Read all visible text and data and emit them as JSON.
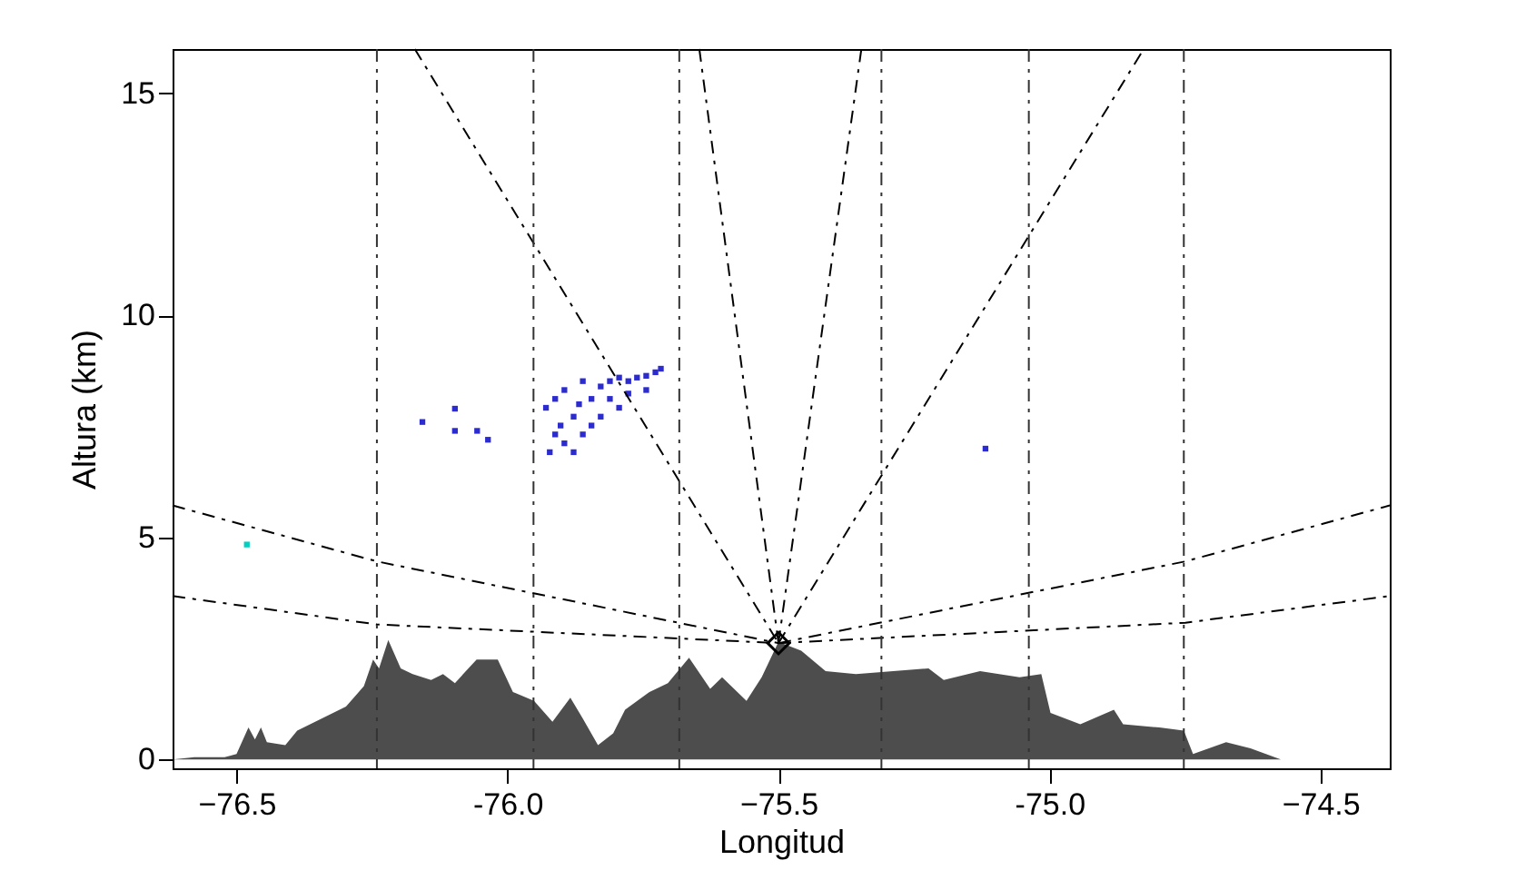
{
  "chart_data": {
    "type": "area",
    "xlabel": "Longitud",
    "ylabel": "Altura (km)",
    "xlim": [
      -76.618,
      -74.372
    ],
    "ylim": [
      -0.2,
      16
    ],
    "xticks": [
      -76.5,
      {
        "value": -76,
        "label": "-76.0"
      },
      -75.5,
      {
        "value": -75,
        "label": "-75.0"
      },
      -74.5
    ],
    "yticks": [
      0,
      5,
      10,
      15
    ],
    "grid": false,
    "series": [
      {
        "color": "#4d4d4d",
        "x": [
          -76.618,
          -76.578,
          -76.522,
          -76.5,
          -76.478,
          -76.466,
          -76.455,
          -76.444,
          -76.41,
          -76.388,
          -76.343,
          -76.298,
          -76.265,
          -76.248,
          -76.237,
          -76.22,
          -76.197,
          -76.175,
          -76.141,
          -76.119,
          -76.097,
          -76.057,
          -76.018,
          -75.99,
          -75.951,
          -75.917,
          -75.884,
          -75.861,
          -75.833,
          -75.805,
          -75.783,
          -75.738,
          -75.704,
          -75.665,
          -75.626,
          -75.604,
          -75.559,
          -75.531,
          -75.5,
          -75.458,
          -75.413,
          -75.357,
          -75.223,
          -75.195,
          -75.128,
          -75.055,
          -75.015,
          -74.998,
          -74.943,
          -74.881,
          -74.864,
          -74.797,
          -74.752,
          -74.735,
          -74.674,
          -74.629,
          -74.573,
          -74.472,
          -74.382
        ],
        "values": [
          0.0,
          0.05,
          0.05,
          0.12,
          0.72,
          0.45,
          0.72,
          0.39,
          0.32,
          0.65,
          0.92,
          1.19,
          1.65,
          2.25,
          2.05,
          2.69,
          2.05,
          1.92,
          1.79,
          1.92,
          1.72,
          2.25,
          2.25,
          1.52,
          1.32,
          0.85,
          1.39,
          0.92,
          0.32,
          0.59,
          1.12,
          1.52,
          1.72,
          2.29,
          1.59,
          1.85,
          1.32,
          1.85,
          2.65,
          2.45,
          1.99,
          1.92,
          2.05,
          1.79,
          1.99,
          1.85,
          1.92,
          1.05,
          0.79,
          1.12,
          0.79,
          0.72,
          0.65,
          0.12,
          0.39,
          0.25,
          0.0,
          0.0,
          0.0
        ]
      },
      {
        "type": "scatter",
        "color": "#2b2bd0",
        "marker": "square",
        "x": [
          -75.929,
          -75.912,
          -75.895,
          -75.878,
          -75.861,
          -75.845,
          -75.828,
          -75.811,
          -75.794,
          -75.777,
          -75.761,
          -75.744,
          -75.727,
          -75.717,
          -75.912,
          -75.895,
          -75.878,
          -75.861,
          -75.845,
          -75.828,
          -75.794,
          -75.922,
          -75.902,
          -75.868,
          -75.811,
          -75.777,
          -75.744,
          -76.157,
          -76.097,
          -76.097,
          -76.056,
          -76.036,
          -75.118
        ],
        "values": [
          7.92,
          8.12,
          8.32,
          7.72,
          8.52,
          8.12,
          8.4,
          8.52,
          8.6,
          8.52,
          8.6,
          8.64,
          8.72,
          8.8,
          7.32,
          7.12,
          6.92,
          7.32,
          7.52,
          7.72,
          7.92,
          6.92,
          7.52,
          8.0,
          8.12,
          8.24,
          8.32,
          7.6,
          7.9,
          7.4,
          7.4,
          7.2,
          7.0
        ]
      },
      {
        "type": "scatter",
        "color": "#00d0c0",
        "marker": "square",
        "x": [
          -76.481
        ],
        "values": [
          4.84
        ]
      },
      {
        "type": "line",
        "color": "#000000",
        "line_style": "dashed",
        "x": [
          -75.5,
          -76.171
        ],
        "values": [
          2.62,
          16
        ]
      },
      {
        "type": "line",
        "color": "#000000",
        "line_style": "dashed",
        "x": [
          -75.5,
          -74.826
        ],
        "values": [
          2.62,
          16
        ]
      },
      {
        "type": "line",
        "color": "#000000",
        "line_style": "dashed",
        "x": [
          -75.5,
          -75.646
        ],
        "values": [
          2.62,
          16
        ]
      },
      {
        "type": "line",
        "color": "#000000",
        "line_style": "dashed",
        "x": [
          -75.5,
          -75.347
        ],
        "values": [
          2.62,
          16
        ]
      },
      {
        "type": "line",
        "color": "#000000",
        "line_style": "dashed",
        "x": [
          -75.5,
          -76.241,
          -76.618
        ],
        "values": [
          2.62,
          4.46,
          5.72
        ]
      },
      {
        "type": "line",
        "color": "#000000",
        "line_style": "dashed",
        "x": [
          -75.5,
          -76.241,
          -76.618
        ],
        "values": [
          2.62,
          3.04,
          3.68
        ]
      },
      {
        "type": "line",
        "color": "#000000",
        "line_style": "dashed",
        "x": [
          -75.5,
          -74.749,
          -74.372
        ],
        "values": [
          2.62,
          4.46,
          5.72
        ]
      },
      {
        "type": "line",
        "color": "#000000",
        "line_style": "dashed",
        "x": [
          -75.5,
          -74.749,
          -74.372
        ],
        "values": [
          2.62,
          3.08,
          3.68
        ]
      },
      {
        "type": "scatter",
        "color": "#000000",
        "marker": "diamond",
        "x": [
          -75.5
        ],
        "values": [
          2.62
        ]
      }
    ],
    "ref_lines": [
      {
        "axis": "x",
        "value": -76.241,
        "color": "#333333",
        "line_style": "dashed"
      },
      {
        "axis": "x",
        "value": -75.952,
        "color": "#333333",
        "line_style": "dashed"
      },
      {
        "axis": "x",
        "value": -75.683,
        "color": "#333333",
        "line_style": "dashed"
      },
      {
        "axis": "x",
        "value": -75.31,
        "color": "#333333",
        "line_style": "dashed"
      },
      {
        "axis": "x",
        "value": -75.038,
        "color": "#333333",
        "line_style": "dashed"
      },
      {
        "axis": "x",
        "value": -74.752,
        "color": "#333333",
        "line_style": "dashed"
      }
    ]
  }
}
